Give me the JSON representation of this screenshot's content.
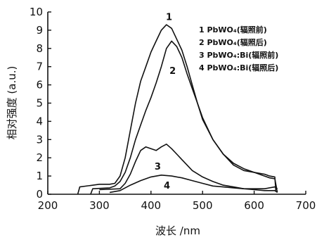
{
  "chart_data": {
    "type": "line",
    "xlabel": "波长 /nm",
    "ylabel": "相对强度 (a.u.)",
    "xlim": [
      200,
      700
    ],
    "ylim": [
      0,
      10
    ],
    "xticks": [
      "200",
      "300",
      "400",
      "500",
      "600",
      "700"
    ],
    "yticks": [
      "0",
      "1",
      "2",
      "3",
      "4",
      "5",
      "6",
      "7",
      "8",
      "9",
      "10"
    ],
    "legend": [
      "1 PbWO₄(辐照前)",
      "2 PbWO₄(辐照后)",
      "3 PbWO₄:Bi(辐照前)",
      "4 PbWO₄:Bi(辐照后)"
    ],
    "series": [
      {
        "name": "1 PbWO₄(辐照前)",
        "label": "1",
        "x": [
          258,
          262,
          300,
          320,
          330,
          340,
          350,
          360,
          370,
          380,
          390,
          400,
          410,
          420,
          430,
          440,
          450,
          460,
          470,
          480,
          490,
          500,
          520,
          540,
          560,
          580,
          600,
          620,
          630,
          640,
          642
        ],
        "y": [
          0.0,
          0.4,
          0.55,
          0.55,
          0.6,
          1.0,
          2.0,
          3.5,
          5.0,
          6.2,
          7.0,
          7.8,
          8.4,
          9.0,
          9.3,
          9.1,
          8.5,
          7.9,
          7.0,
          6.0,
          5.0,
          4.1,
          3.0,
          2.2,
          1.7,
          1.4,
          1.2,
          1.1,
          1.0,
          0.95,
          0.2
        ]
      },
      {
        "name": "2 PbWO₄(辐照后)",
        "label": "2",
        "x": [
          283,
          287,
          320,
          330,
          340,
          350,
          360,
          370,
          380,
          390,
          400,
          410,
          420,
          430,
          440,
          450,
          460,
          470,
          480,
          490,
          500,
          520,
          540,
          560,
          580,
          600,
          620,
          630,
          640,
          645
        ],
        "y": [
          0.0,
          0.3,
          0.35,
          0.45,
          0.7,
          1.2,
          2.0,
          3.0,
          3.8,
          4.6,
          5.3,
          6.1,
          7.0,
          8.0,
          8.4,
          8.1,
          7.5,
          6.6,
          5.8,
          5.0,
          4.2,
          3.0,
          2.2,
          1.6,
          1.3,
          1.2,
          1.0,
          0.9,
          0.85,
          0.1
        ]
      },
      {
        "name": "3 PbWO₄:Bi(辐照前)",
        "label": "3",
        "x": [
          300,
          340,
          350,
          360,
          370,
          380,
          390,
          400,
          410,
          420,
          430,
          440,
          450,
          460,
          470,
          480,
          500,
          520,
          540,
          560,
          580,
          600,
          620,
          640,
          645
        ],
        "y": [
          0.25,
          0.3,
          0.6,
          1.1,
          1.8,
          2.4,
          2.6,
          2.5,
          2.4,
          2.6,
          2.75,
          2.5,
          2.2,
          1.9,
          1.6,
          1.3,
          0.95,
          0.7,
          0.5,
          0.4,
          0.3,
          0.25,
          0.2,
          0.2,
          0.1
        ]
      },
      {
        "name": "4 PbWO₄:Bi(辐照后)",
        "label": "4",
        "x": [
          320,
          340,
          360,
          380,
          400,
          420,
          440,
          460,
          480,
          500,
          520,
          540,
          560,
          580,
          600,
          620,
          640,
          645
        ],
        "y": [
          0.1,
          0.2,
          0.5,
          0.75,
          0.95,
          1.05,
          1.0,
          0.9,
          0.75,
          0.6,
          0.45,
          0.4,
          0.35,
          0.3,
          0.3,
          0.3,
          0.4,
          0.3
        ]
      }
    ]
  }
}
